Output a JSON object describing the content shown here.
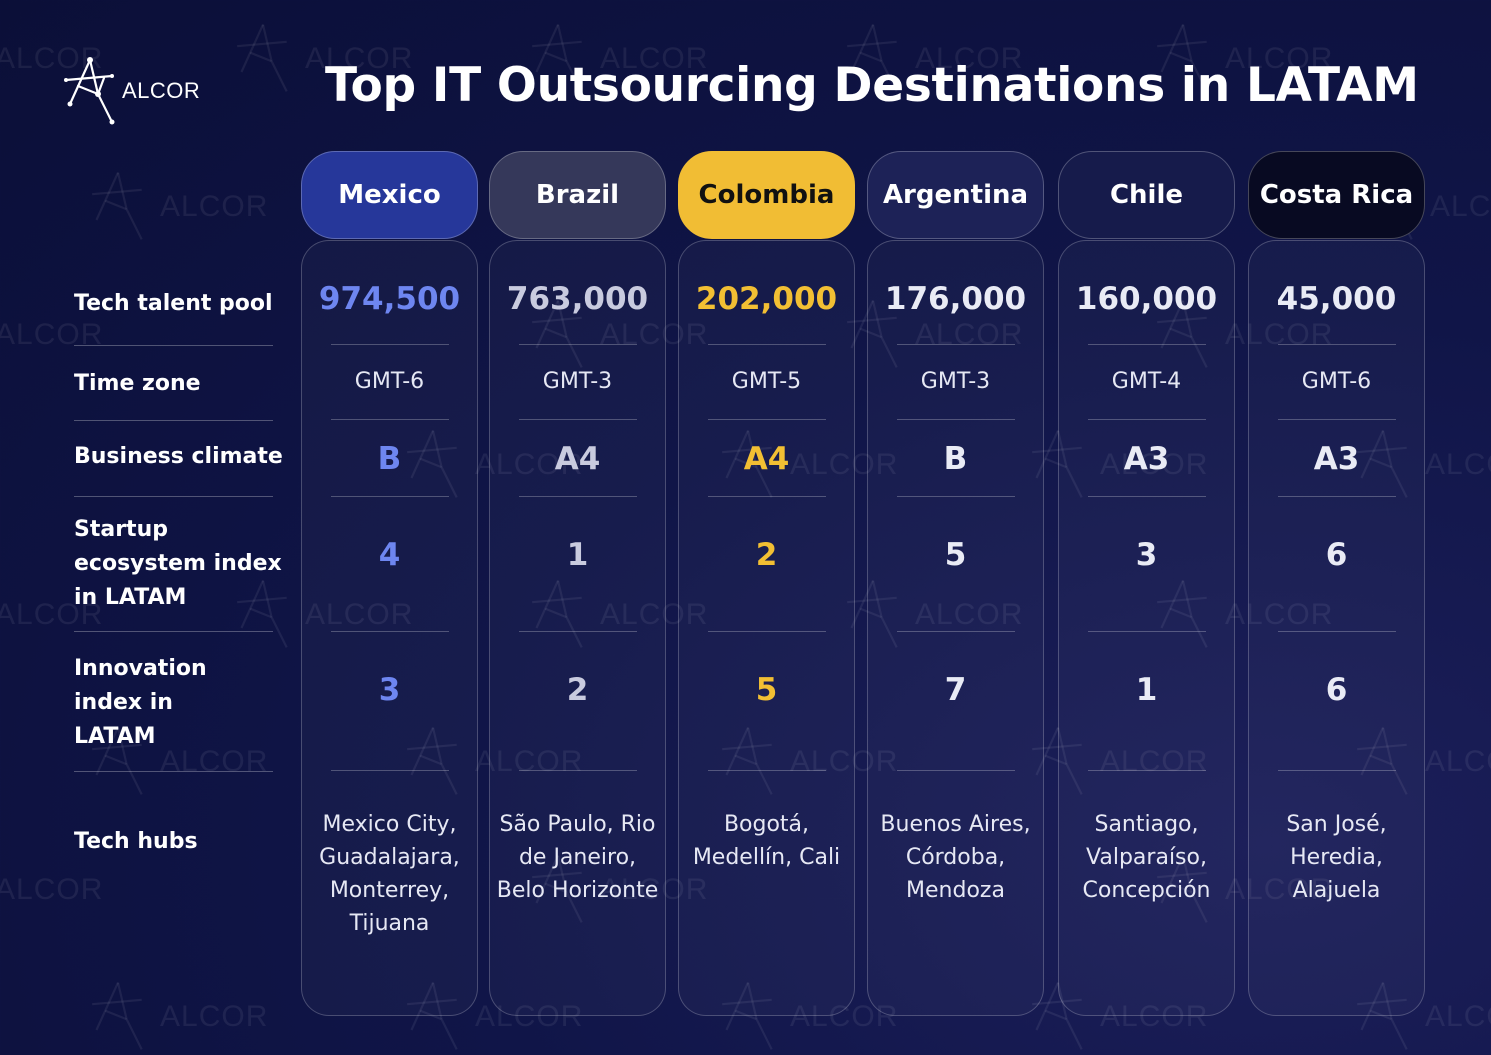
{
  "brand": {
    "name": "ALCOR",
    "watermark": "ALCOR"
  },
  "title": "Top IT Outsourcing Destinations in LATAM",
  "row_labels": {
    "talent": "Tech talent pool",
    "timezone": "Time zone",
    "climate": "Business climate",
    "startup": "Startup ecosystem index in LATAM",
    "innovation": "Innovation index in LATAM",
    "hubs": "Tech hubs"
  },
  "colors": {
    "mexico_accent": "#6e86f0",
    "colombia_accent": "#f2bf33",
    "neutral_value": "#d4d7e8",
    "mexico_head": "#26379a",
    "brazil_head": "#35385a",
    "colombia_head": "#f1bd34",
    "argentina_head": "#1d2257",
    "chile_head": "#161b4b",
    "costarica_head": "#080a22"
  },
  "countries": [
    {
      "name": "Mexico",
      "talent": "974,500",
      "timezone": "GMT-6",
      "climate": "B",
      "startup": "4",
      "innovation": "3",
      "hubs": "Mexico City, Guadalajara, Monterrey, Tijuana"
    },
    {
      "name": "Brazil",
      "talent": "763,000",
      "timezone": "GMT-3",
      "climate": "A4",
      "startup": "1",
      "innovation": "2",
      "hubs": "São Paulo, Rio de Janeiro, Belo Horizonte"
    },
    {
      "name": "Colombia",
      "talent": "202,000",
      "timezone": "GMT-5",
      "climate": "A4",
      "startup": "2",
      "innovation": "5",
      "hubs": "Bogotá, Medellín, Cali"
    },
    {
      "name": "Argentina",
      "talent": "176,000",
      "timezone": "GMT-3",
      "climate": "B",
      "startup": "5",
      "innovation": "7",
      "hubs": "Buenos Aires, Córdoba, Mendoza"
    },
    {
      "name": "Chile",
      "talent": "160,000",
      "timezone": "GMT-4",
      "climate": "A3",
      "startup": "3",
      "innovation": "1",
      "hubs": "Santiago, Valparaíso, Concepción"
    },
    {
      "name": "Costa Rica",
      "talent": "45,000",
      "timezone": "GMT-6",
      "climate": "A3",
      "startup": "6",
      "innovation": "6",
      "hubs": "San José, Heredia, Alajuela"
    }
  ]
}
